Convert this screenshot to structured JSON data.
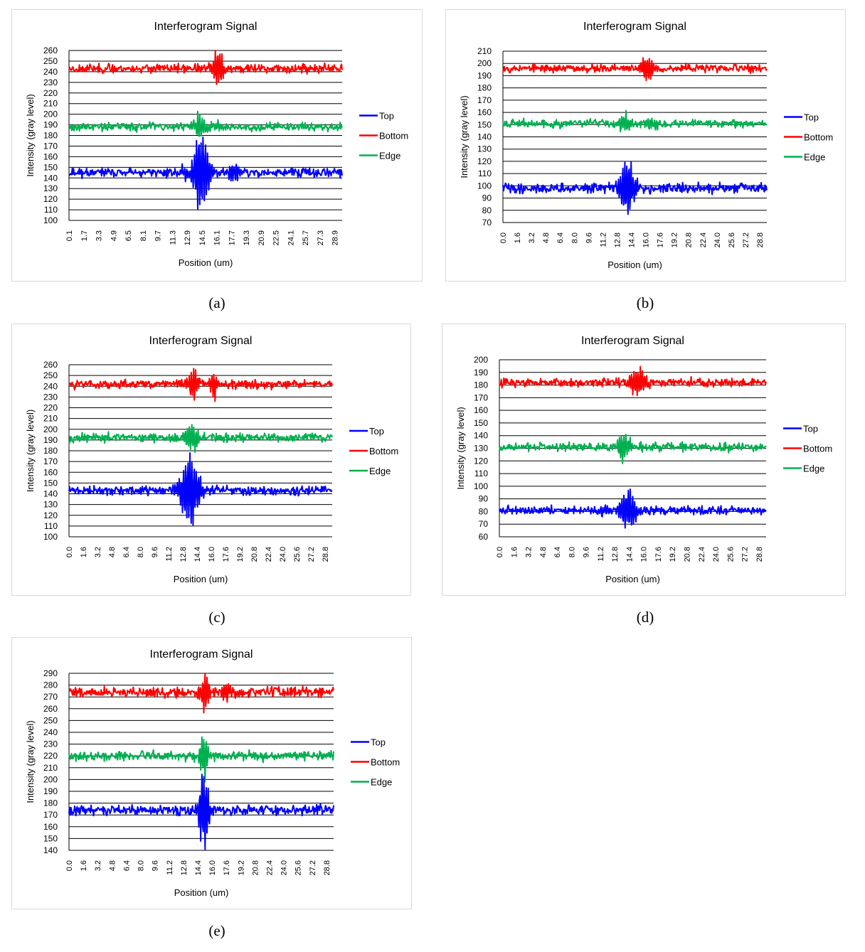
{
  "chart_data": [
    {
      "id": "a",
      "caption": "(a)",
      "type": "line",
      "title": "Interferogram Signal",
      "xlabel": "Position (um)",
      "ylabel": "Intensity (gray level)",
      "ylim": [
        100,
        260
      ],
      "ytick_step": 10,
      "xlim": [
        0.1,
        29.7
      ],
      "grid": "horizontal",
      "legend": "right",
      "xticks": [
        "0.1",
        "1.7",
        "3.3",
        "4.9",
        "6.5",
        "8.1",
        "9.7",
        "11.3",
        "12.9",
        "14.5",
        "16.1",
        "17.7",
        "19.3",
        "20.9",
        "22.5",
        "24.1",
        "25.7",
        "27.3",
        "28.9"
      ],
      "series": [
        {
          "name": "Top",
          "color": "#0000ff",
          "base": 145,
          "noise": 2.5,
          "seed": 11,
          "packets": [
            {
              "x": 14.4,
              "w": 0.9,
              "a": 38,
              "f": 4.2
            },
            {
              "x": 18.0,
              "w": 0.8,
              "a": 8,
              "f": 4.2
            },
            {
              "x": 12.6,
              "w": 0.7,
              "a": 6,
              "f": 4.2
            }
          ]
        },
        {
          "name": "Bottom",
          "color": "#ff0000",
          "base": 243,
          "noise": 2.5,
          "seed": 23,
          "packets": [
            {
              "x": 16.2,
              "w": 0.8,
              "a": 16,
              "f": 4.2
            }
          ]
        },
        {
          "name": "Edge",
          "color": "#00b050",
          "base": 188,
          "noise": 2.5,
          "seed": 37,
          "packets": [
            {
              "x": 14.3,
              "w": 0.7,
              "a": 12,
              "f": 4.2
            },
            {
              "x": 16.0,
              "w": 0.8,
              "a": 6,
              "f": 4.2
            }
          ]
        }
      ]
    },
    {
      "id": "b",
      "caption": "(b)",
      "type": "line",
      "title": "Interferogram Signal",
      "xlabel": "Position (um)",
      "ylabel": "Intensity (gray level)",
      "ylim": [
        70,
        210
      ],
      "ytick_step": 10,
      "xlim": [
        0.0,
        29.6
      ],
      "grid": "horizontal",
      "legend": "right",
      "xticks": [
        "0.0",
        "1.6",
        "3.2",
        "4.8",
        "6.4",
        "8.0",
        "9.6",
        "11.2",
        "12.8",
        "14.4",
        "16.0",
        "17.6",
        "19.2",
        "20.8",
        "22.4",
        "24.0",
        "25.6",
        "27.2",
        "28.8"
      ],
      "series": [
        {
          "name": "Top",
          "color": "#0000ff",
          "base": 98,
          "noise": 2.5,
          "seed": 41,
          "packets": [
            {
              "x": 13.9,
              "w": 0.8,
              "a": 26,
              "f": 4.2
            }
          ]
        },
        {
          "name": "Bottom",
          "color": "#ff0000",
          "base": 196,
          "noise": 2.0,
          "seed": 53,
          "packets": [
            {
              "x": 16.2,
              "w": 0.8,
              "a": 9,
              "f": 4.2
            }
          ]
        },
        {
          "name": "Edge",
          "color": "#00b050",
          "base": 151,
          "noise": 2.0,
          "seed": 67,
          "packets": [
            {
              "x": 13.8,
              "w": 0.8,
              "a": 7,
              "f": 4.2
            },
            {
              "x": 16.5,
              "w": 0.7,
              "a": 4,
              "f": 4.2
            }
          ]
        }
      ]
    },
    {
      "id": "c",
      "caption": "(c)",
      "type": "line",
      "title": "Interferogram Signal",
      "xlabel": "Position (um)",
      "ylabel": "Intensity (gray level)",
      "ylim": [
        100,
        260
      ],
      "ytick_step": 10,
      "xlim": [
        0.0,
        29.6
      ],
      "grid": "horizontal",
      "legend": "right",
      "xticks": [
        "0.0",
        "1.6",
        "3.2",
        "4.8",
        "6.4",
        "8.0",
        "9.6",
        "11.2",
        "12.8",
        "14.4",
        "16.0",
        "17.6",
        "19.2",
        "20.8",
        "22.4",
        "24.0",
        "25.6",
        "27.2",
        "28.8"
      ],
      "series": [
        {
          "name": "Top",
          "color": "#0000ff",
          "base": 143,
          "noise": 2.5,
          "seed": 71,
          "packets": [
            {
              "x": 13.6,
              "w": 1.1,
              "a": 34,
              "f": 4.2
            }
          ]
        },
        {
          "name": "Bottom",
          "color": "#ff0000",
          "base": 242,
          "noise": 2.5,
          "seed": 83,
          "packets": [
            {
              "x": 14.0,
              "w": 0.7,
              "a": 13,
              "f": 4.2
            },
            {
              "x": 16.3,
              "w": 0.6,
              "a": 12,
              "f": 4.2
            }
          ]
        },
        {
          "name": "Edge",
          "color": "#00b050",
          "base": 192,
          "noise": 2.5,
          "seed": 97,
          "packets": [
            {
              "x": 13.8,
              "w": 0.8,
              "a": 14,
              "f": 4.2
            }
          ]
        }
      ]
    },
    {
      "id": "d",
      "caption": "(d)",
      "type": "line",
      "title": "Interferogram Signal",
      "xlabel": "Position (um)",
      "ylabel": "Intensity (gray level)",
      "ylim": [
        60,
        200
      ],
      "ytick_step": 10,
      "xlim": [
        0.0,
        29.6
      ],
      "grid": "horizontal",
      "legend": "right",
      "xticks": [
        "0.0",
        "1.6",
        "3.2",
        "4.8",
        "6.4",
        "8.0",
        "9.6",
        "11.2",
        "12.8",
        "14.4",
        "16.0",
        "17.6",
        "19.2",
        "20.8",
        "22.4",
        "24.0",
        "25.6",
        "27.2",
        "28.8"
      ],
      "series": [
        {
          "name": "Top",
          "color": "#0000ff",
          "base": 81,
          "noise": 2.0,
          "seed": 101,
          "packets": [
            {
              "x": 14.3,
              "w": 1.0,
              "a": 14,
              "f": 4.2
            },
            {
              "x": 11.5,
              "w": 1.0,
              "a": 4,
              "f": 4.2
            }
          ]
        },
        {
          "name": "Bottom",
          "color": "#ff0000",
          "base": 182,
          "noise": 2.0,
          "seed": 113,
          "packets": [
            {
              "x": 15.4,
              "w": 1.1,
              "a": 10,
              "f": 4.2
            }
          ]
        },
        {
          "name": "Edge",
          "color": "#00b050",
          "base": 131,
          "noise": 2.0,
          "seed": 127,
          "packets": [
            {
              "x": 13.8,
              "w": 0.7,
              "a": 10,
              "f": 4.2
            }
          ]
        }
      ]
    },
    {
      "id": "e",
      "caption": "(e)",
      "type": "line",
      "title": "Interferogram Signal",
      "xlabel": "Position (um)",
      "ylabel": "Intensity (gray level)",
      "ylim": [
        140,
        290
      ],
      "ytick_step": 10,
      "xlim": [
        0.0,
        29.6
      ],
      "grid": "horizontal",
      "legend": "right",
      "xticks": [
        "0.0",
        "1.6",
        "3.2",
        "4.8",
        "6.4",
        "8.0",
        "9.6",
        "11.2",
        "12.8",
        "14.4",
        "16.0",
        "17.6",
        "19.2",
        "20.8",
        "22.4",
        "24.0",
        "25.6",
        "27.2",
        "28.8"
      ],
      "series": [
        {
          "name": "Top",
          "color": "#0000ff",
          "base": 174,
          "noise": 2.5,
          "seed": 131,
          "packets": [
            {
              "x": 15.1,
              "w": 0.6,
              "a": 30,
              "f": 4.2
            }
          ]
        },
        {
          "name": "Bottom",
          "color": "#ff0000",
          "base": 274,
          "noise": 2.5,
          "seed": 139,
          "packets": [
            {
              "x": 15.2,
              "w": 0.6,
              "a": 14,
              "f": 4.2
            },
            {
              "x": 17.6,
              "w": 0.6,
              "a": 8,
              "f": 4.2
            }
          ]
        },
        {
          "name": "Edge",
          "color": "#00b050",
          "base": 220,
          "noise": 2.5,
          "seed": 149,
          "packets": [
            {
              "x": 15.1,
              "w": 0.5,
              "a": 18,
              "f": 4.2
            }
          ]
        }
      ]
    }
  ]
}
